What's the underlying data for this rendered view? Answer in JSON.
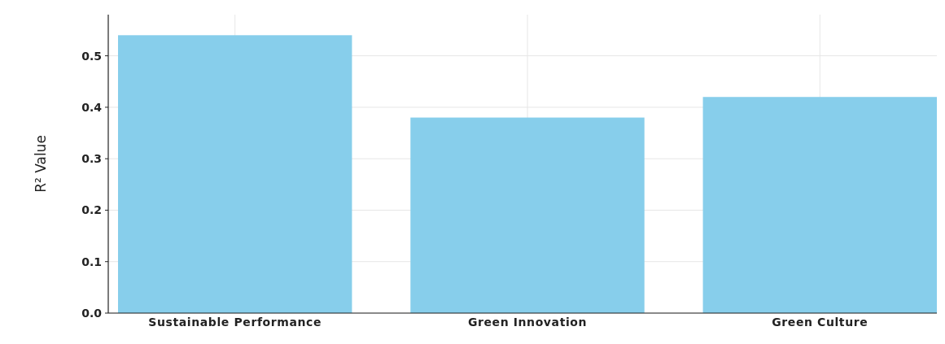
{
  "chart_data": {
    "type": "bar",
    "ylabel": "R² Value",
    "categories": [
      "Sustainable Performance",
      "Green Innovation",
      "Green Culture"
    ],
    "values": [
      0.54,
      0.38,
      0.42
    ],
    "color": "#87ceeb",
    "ylim": [
      0,
      0.58
    ],
    "yticks": [
      {
        "value": 0,
        "label": "0.0"
      },
      0.1,
      0.2,
      0.3,
      0.4,
      0.5
    ],
    "grid": true
  }
}
